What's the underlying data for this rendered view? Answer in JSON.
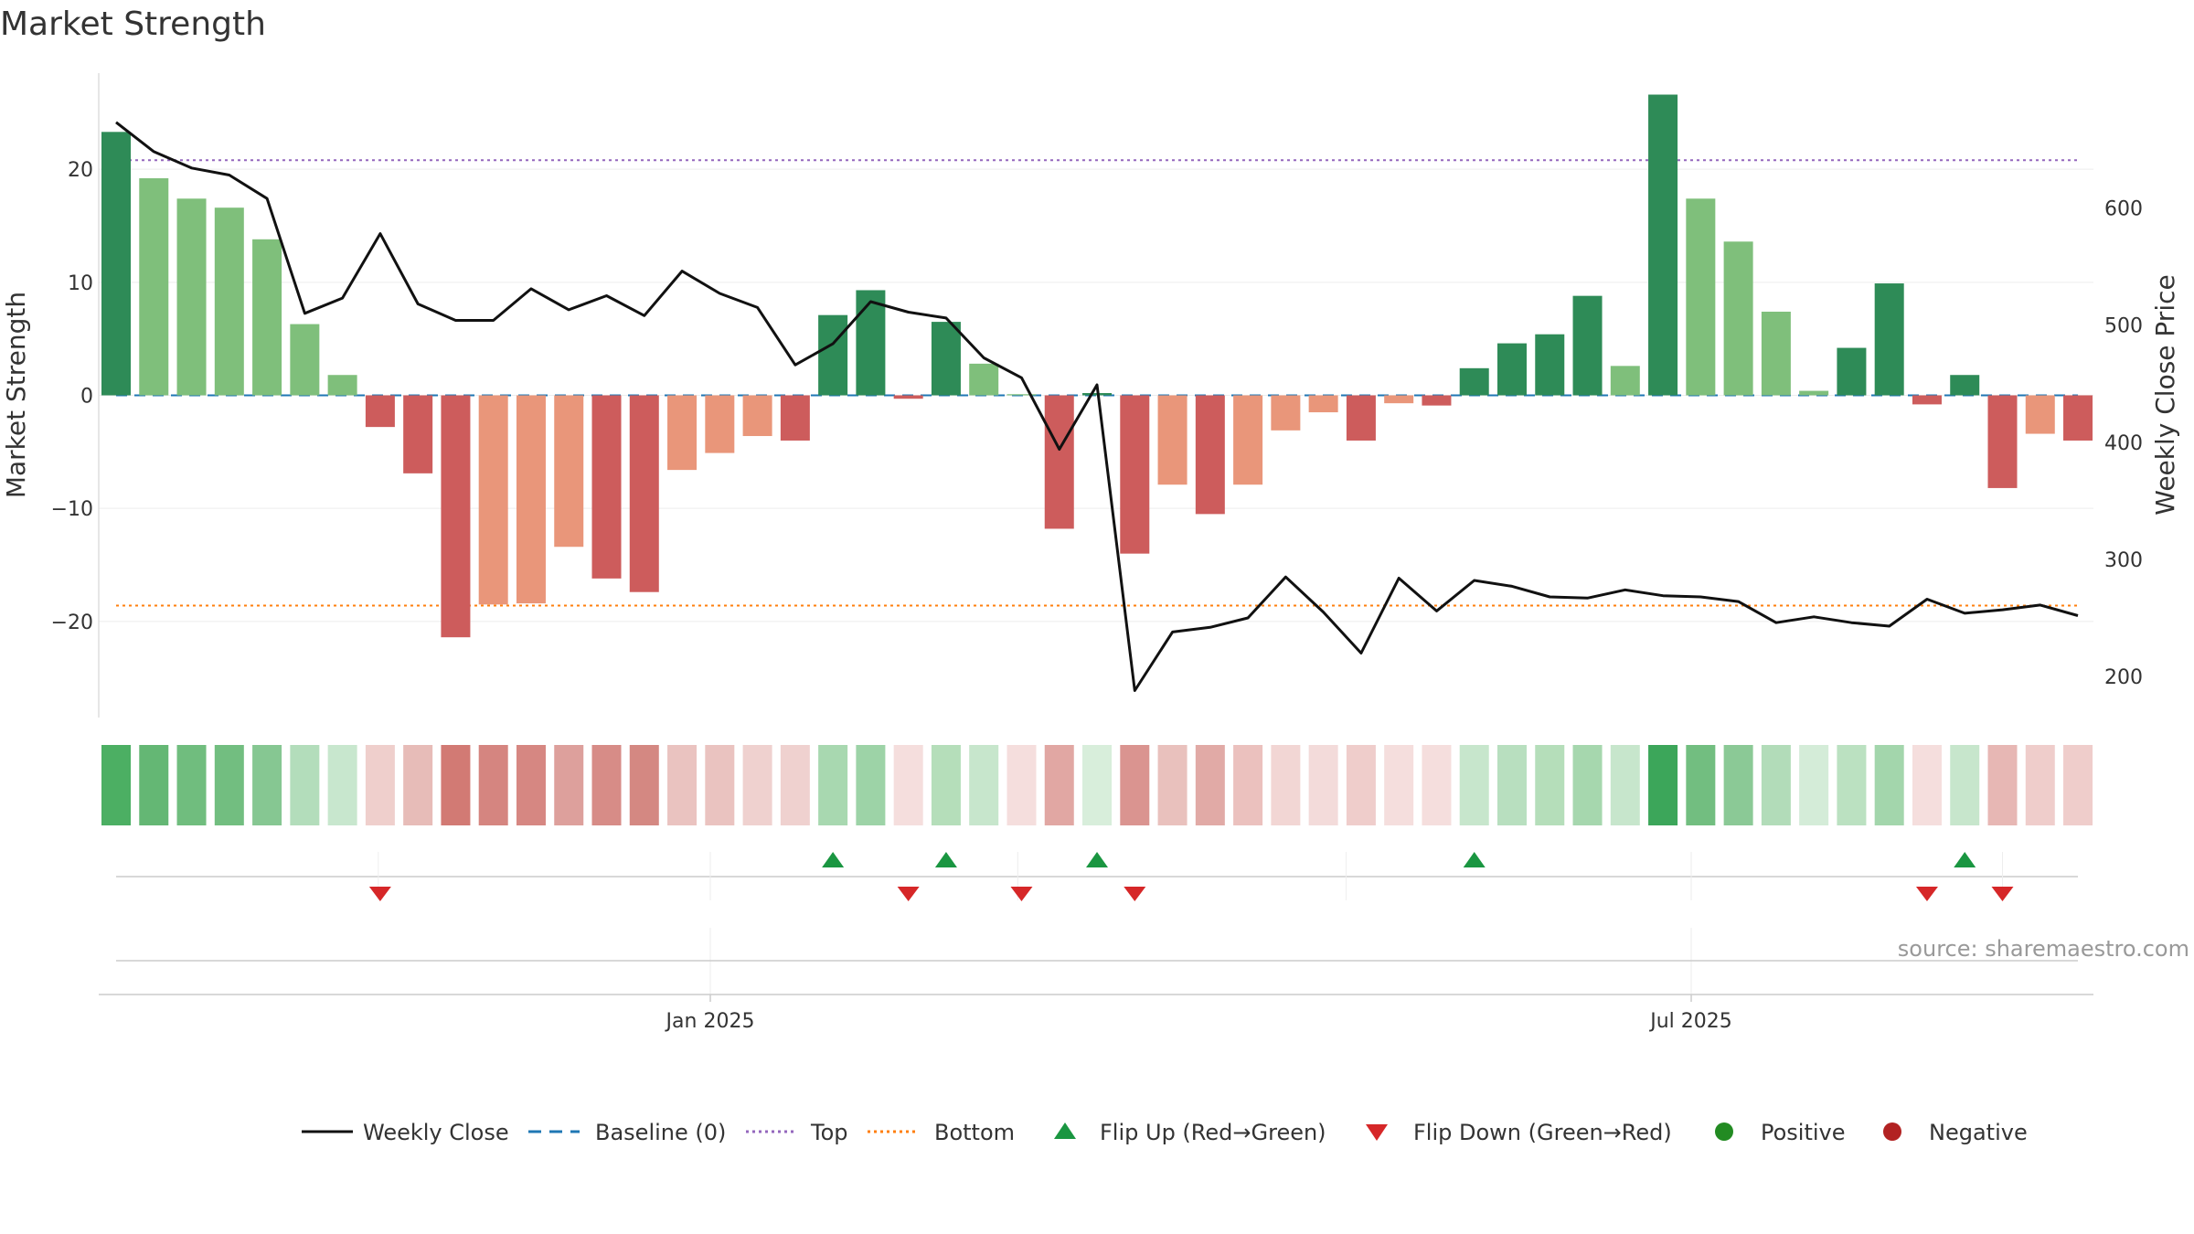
{
  "chart_data": {
    "type": "bar",
    "title": "Market Strength",
    "ylabel": "Market Strength",
    "y2label": "Weekly Close Price",
    "ylim": [
      -28.5,
      28.5
    ],
    "y2lim": [
      165,
      715
    ],
    "yticks": [
      20,
      10,
      0,
      -10,
      -20
    ],
    "ytick_labels": [
      "20",
      "10",
      "0",
      "−10",
      "−20"
    ],
    "y2ticks": [
      600,
      500,
      400,
      300,
      200
    ],
    "y2tick_labels": [
      "600",
      "500",
      "400",
      "300",
      "200"
    ],
    "xtick_labels": [
      "Jan 2025",
      "Jul 2025"
    ],
    "xtick_weeks": [
      15.75,
      41.75
    ],
    "minor_xtick_weeks": [
      6.95,
      23.9,
      32.6,
      50.0
    ],
    "top": 20.8,
    "bottom": -18.6,
    "baseline": 0,
    "strength": [
      23.3,
      19.2,
      17.4,
      16.6,
      13.8,
      6.3,
      1.8,
      -2.8,
      -6.9,
      -21.4,
      -18.5,
      -18.4,
      -13.4,
      -16.2,
      -17.4,
      -6.6,
      -5.1,
      -3.6,
      -4.0,
      7.1,
      9.3,
      -0.3,
      6.5,
      2.8,
      0.1,
      -11.8,
      0.2,
      -14.0,
      -7.9,
      -10.5,
      -7.9,
      -3.1,
      -1.5,
      -4.0,
      -0.7,
      -0.9,
      2.4,
      4.6,
      5.4,
      8.8,
      2.6,
      26.6,
      17.4,
      13.6,
      7.4,
      0.4,
      4.2,
      9.9,
      -0.8,
      1.8,
      -8.2,
      -3.4,
      -4.0
    ],
    "strength_colors": [
      "#2e8b57",
      "#7fbf7b",
      "#7fbf7b",
      "#7fbf7b",
      "#7fbf7b",
      "#7fbf7b",
      "#7fbf7b",
      "#cd5c5c",
      "#cd5c5c",
      "#cd5c5c",
      "#e9967a",
      "#e9967a",
      "#e9967a",
      "#cd5c5c",
      "#cd5c5c",
      "#e9967a",
      "#e9967a",
      "#e9967a",
      "#cd5c5c",
      "#2e8b57",
      "#2e8b57",
      "#cd5c5c",
      "#2e8b57",
      "#7fbf7b",
      "#7fbf7b",
      "#cd5c5c",
      "#2e8b57",
      "#cd5c5c",
      "#e9967a",
      "#cd5c5c",
      "#e9967a",
      "#e9967a",
      "#e9967a",
      "#cd5c5c",
      "#e9967a",
      "#cd5c5c",
      "#2e8b57",
      "#2e8b57",
      "#2e8b57",
      "#2e8b57",
      "#7fbf7b",
      "#2e8b57",
      "#7fbf7b",
      "#7fbf7b",
      "#7fbf7b",
      "#7fbf7b",
      "#2e8b57",
      "#2e8b57",
      "#cd5c5c",
      "#2e8b57",
      "#cd5c5c",
      "#e9967a",
      "#cd5c5c"
    ],
    "weekly_close": [
      673,
      648,
      634,
      628,
      608,
      510,
      523,
      578,
      518,
      504,
      504,
      531,
      513,
      525,
      508,
      546,
      527,
      515,
      466,
      484,
      520,
      511,
      506,
      472,
      455,
      394,
      449,
      188,
      238,
      242,
      250,
      285,
      255,
      220,
      284,
      256,
      282,
      277,
      268,
      267,
      274,
      269,
      268,
      264,
      246,
      251,
      246,
      243,
      266,
      254,
      257,
      261,
      252
    ],
    "heat_colors": [
      "#4caf63",
      "#64b774",
      "#70bd7e",
      "#72be80",
      "#86c792",
      "#b3ddbb",
      "#c8e7ce",
      "#efcfcc",
      "#e7bcb8",
      "#d27a74",
      "#d58580",
      "#d68782",
      "#dda09c",
      "#d78c87",
      "#d48882",
      "#eac3c0",
      "#eac3c0",
      "#efd1cf",
      "#efd1cf",
      "#a8d8b0",
      "#9dd3a7",
      "#f5dedd",
      "#b5deba",
      "#c7e6cc",
      "#f5dedd",
      "#e1a7a3",
      "#d8eedb",
      "#da9490",
      "#e9c1bd",
      "#e1aaa6",
      "#ebc1be",
      "#f2d6d4",
      "#f3dbda",
      "#efcdcb",
      "#f5dedd",
      "#f5dedd",
      "#c7e6cc",
      "#b8dfbf",
      "#b5deba",
      "#a6d7ae",
      "#c7e6cc",
      "#3ca65a",
      "#72be80",
      "#8bc996",
      "#b2dcb9",
      "#d4ecd8",
      "#bbe1c1",
      "#a3d6ac",
      "#f5dedd",
      "#c7e6cc",
      "#e7b7b4",
      "#efcdcb",
      "#efcdcb"
    ],
    "flip_up_weeks": [
      19,
      22,
      26,
      36,
      49
    ],
    "flip_down_weeks": [
      7,
      21,
      24,
      27,
      48,
      50
    ],
    "source": "source: sharemaestro.com",
    "legend": [
      {
        "type": "line",
        "label": "Weekly Close",
        "color": "#111111"
      },
      {
        "type": "dashed",
        "label": "Baseline (0)",
        "color": "#1f77b4"
      },
      {
        "type": "dotted",
        "label": "Top",
        "color": "#9467bd"
      },
      {
        "type": "dotted",
        "label": "Bottom",
        "color": "#ff7f0e"
      },
      {
        "type": "tri-up",
        "label": "Flip Up (Red→Green)",
        "color": "#1a9641"
      },
      {
        "type": "tri-down",
        "label": "Flip Down (Green→Red)",
        "color": "#d62728"
      },
      {
        "type": "dot",
        "label": "Positive",
        "color": "#228b22"
      },
      {
        "type": "dot",
        "label": "Negative",
        "color": "#b22222"
      }
    ]
  }
}
